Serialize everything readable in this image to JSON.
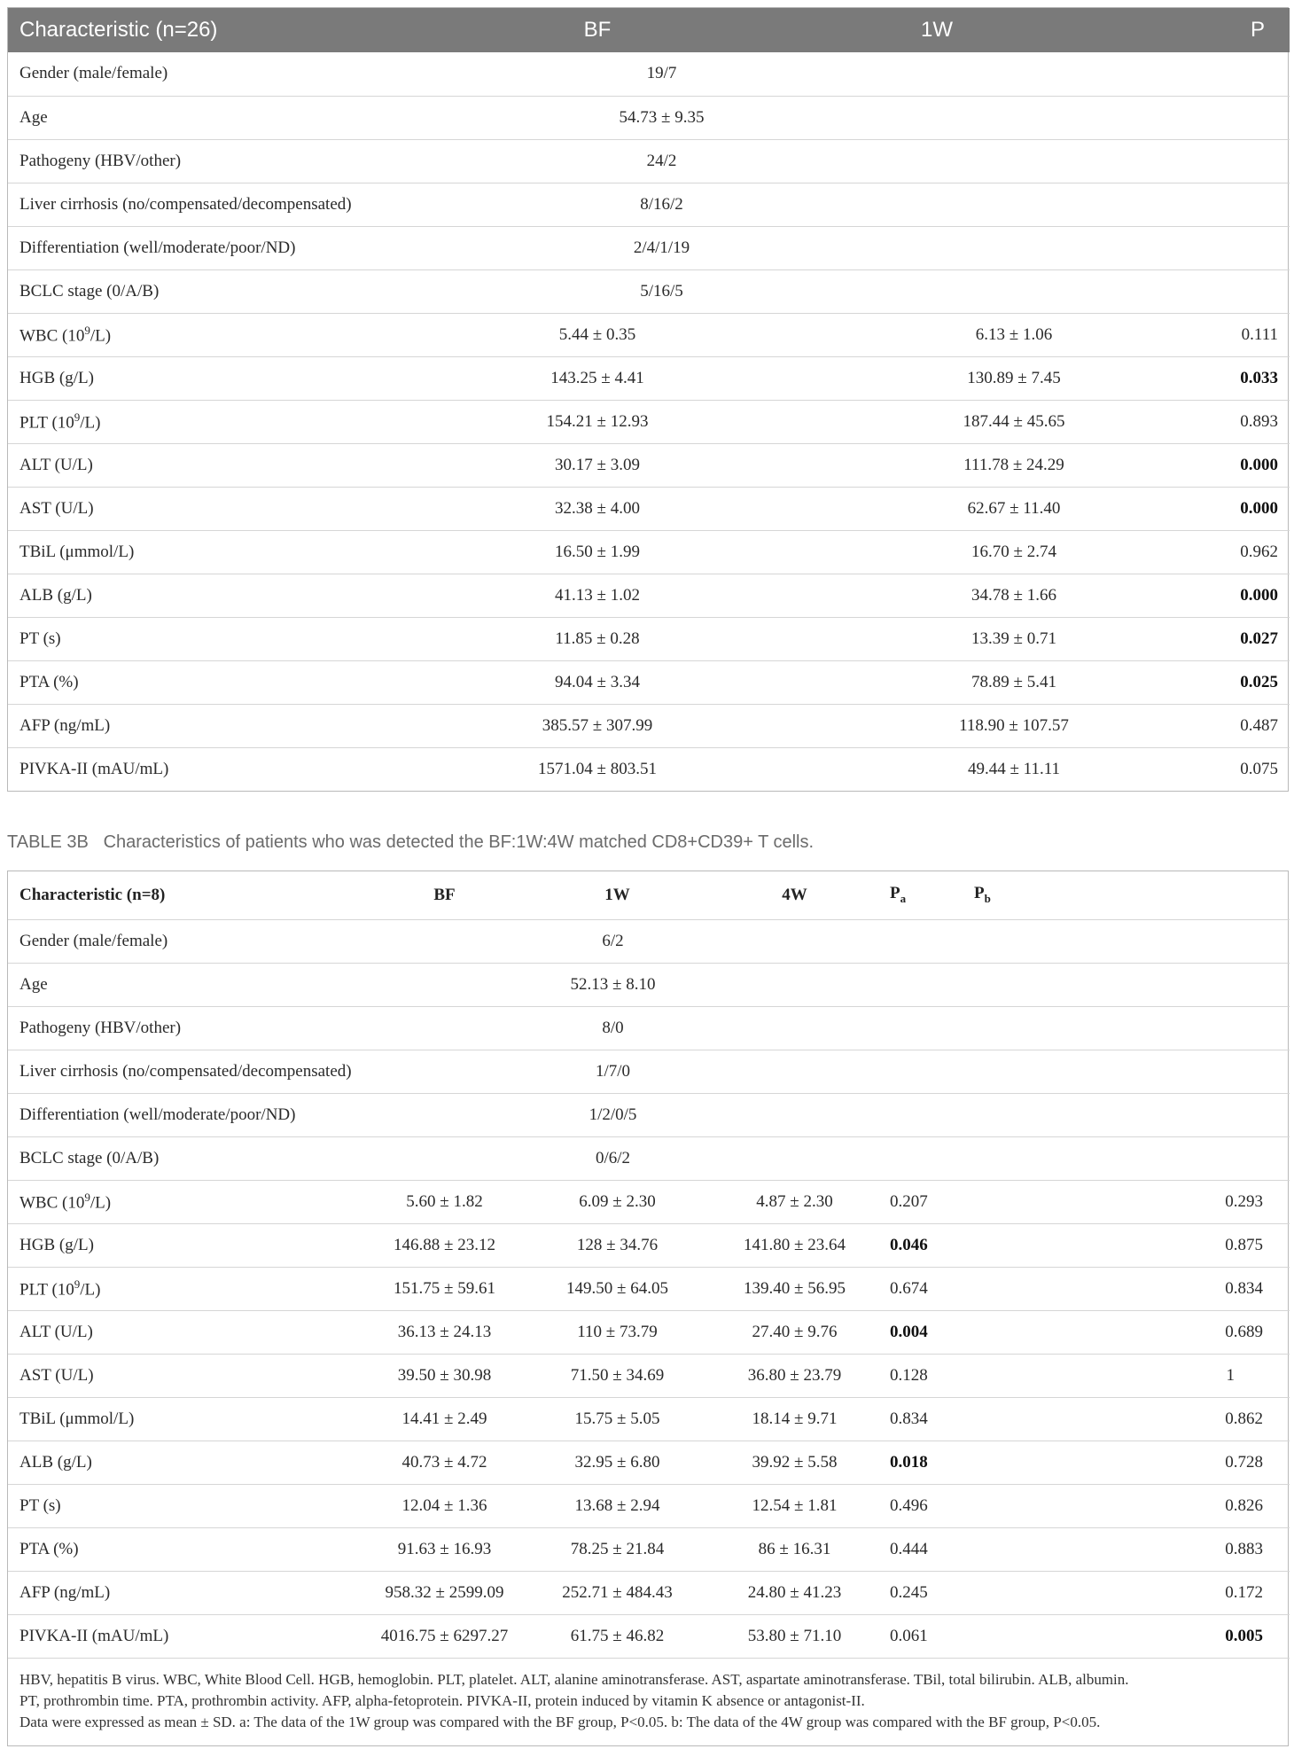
{
  "tableA": {
    "headers": {
      "characteristic": "Characteristic (n=26)",
      "bf": "BF",
      "w1": "1W",
      "p": "P"
    },
    "merged_rows": [
      {
        "label": "Gender (male/female)",
        "value": "19/7"
      },
      {
        "label": "Age",
        "value": "54.73 ± 9.35"
      },
      {
        "label": "Pathogeny (HBV/other)",
        "value": "24/2"
      },
      {
        "label": "Liver cirrhosis (no/compensated/decompensated)",
        "value": "8/16/2"
      },
      {
        "label": "Differentiation (well/moderate/poor/ND)",
        "value": "2/4/1/19"
      },
      {
        "label": "BCLC stage (0/A/B)",
        "value": "5/16/5"
      }
    ],
    "lab_rows": [
      {
        "label": "WBC (10",
        "sup": "9",
        "label_tail": "/L)",
        "bf": "5.44 ± 0.35",
        "w1": "6.13 ± 1.06",
        "p": "0.111",
        "p_bold": false
      },
      {
        "label": "HGB (g/L)",
        "bf": "143.25 ± 4.41",
        "w1": "130.89 ± 7.45",
        "p": "0.033",
        "p_bold": true
      },
      {
        "label": "PLT (10",
        "sup": "9",
        "label_tail": "/L)",
        "bf": "154.21 ± 12.93",
        "w1": "187.44 ± 45.65",
        "p": "0.893",
        "p_bold": false
      },
      {
        "label": "ALT (U/L)",
        "bf": "30.17 ± 3.09",
        "w1": "111.78 ± 24.29",
        "p": "0.000",
        "p_bold": true
      },
      {
        "label": "AST (U/L)",
        "bf": "32.38 ± 4.00",
        "w1": "62.67 ± 11.40",
        "p": "0.000",
        "p_bold": true
      },
      {
        "label": "TBiL (μmmol/L)",
        "bf": "16.50 ± 1.99",
        "w1": "16.70 ± 2.74",
        "p": "0.962",
        "p_bold": false
      },
      {
        "label": "ALB (g/L)",
        "bf": "41.13 ± 1.02",
        "w1": "34.78 ± 1.66",
        "p": "0.000",
        "p_bold": true
      },
      {
        "label": "PT (s)",
        "bf": "11.85 ± 0.28",
        "w1": "13.39 ± 0.71",
        "p": "0.027",
        "p_bold": true
      },
      {
        "label": "PTA (%)",
        "bf": "94.04 ± 3.34",
        "w1": "78.89 ± 5.41",
        "p": "0.025",
        "p_bold": true
      },
      {
        "label": "AFP (ng/mL)",
        "bf": "385.57 ± 307.99",
        "w1": "118.90 ± 107.57",
        "p": "0.487",
        "p_bold": false
      },
      {
        "label": "PIVKA-II (mAU/mL)",
        "bf": "1571.04 ± 803.51",
        "w1": "49.44 ± 11.11",
        "p": "0.075",
        "p_bold": false
      }
    ]
  },
  "caption": {
    "label": "TABLE 3B",
    "text": "Characteristics of patients who was detected the BF:1W:4W matched CD8+CD39+ T cells."
  },
  "tableB": {
    "headers": {
      "characteristic": "Characteristic (n=8)",
      "bf": "BF",
      "w1": "1W",
      "w4": "4W",
      "pa_base": "P",
      "pa_sub": "a",
      "pb_base": "P",
      "pb_sub": "b"
    },
    "merged_rows": [
      {
        "label": "Gender (male/female)",
        "value": "6/2"
      },
      {
        "label": "Age",
        "value": "52.13 ± 8.10"
      },
      {
        "label": "Pathogeny (HBV/other)",
        "value": "8/0"
      },
      {
        "label": "Liver cirrhosis (no/compensated/decompensated)",
        "value": "1/7/0"
      },
      {
        "label": "Differentiation (well/moderate/poor/ND)",
        "value": "1/2/0/5"
      },
      {
        "label": "BCLC stage (0/A/B)",
        "value": "0/6/2"
      }
    ],
    "lab_rows": [
      {
        "label": "WBC (10",
        "sup": "9",
        "label_tail": "/L)",
        "bf": "5.60 ± 1.82",
        "w1": "6.09 ± 2.30",
        "w4": "4.87 ± 2.30",
        "pa": "0.207",
        "pa_bold": false,
        "pb": "0.293",
        "pb_bold": false
      },
      {
        "label": "HGB (g/L)",
        "bf": "146.88 ± 23.12",
        "w1": "128 ± 34.76",
        "w4": "141.80 ± 23.64",
        "pa": "0.046",
        "pa_bold": true,
        "pb": "0.875",
        "pb_bold": false
      },
      {
        "label": "PLT (10",
        "sup": "9",
        "label_tail": "/L)",
        "bf": "151.75 ± 59.61",
        "w1": "149.50 ± 64.05",
        "w4": "139.40 ± 56.95",
        "pa": "0.674",
        "pa_bold": false,
        "pb": "0.834",
        "pb_bold": false
      },
      {
        "label": "ALT (U/L)",
        "bf": "36.13 ± 24.13",
        "w1": "110 ± 73.79",
        "w4": "27.40 ± 9.76",
        "pa": "0.004",
        "pa_bold": true,
        "pb": "0.689",
        "pb_bold": false
      },
      {
        "label": "AST (U/L)",
        "bf": "39.50 ± 30.98",
        "w1": "71.50 ± 34.69",
        "w4": "36.80 ± 23.79",
        "pa": "0.128",
        "pa_bold": false,
        "pb": "1",
        "pb_bold": false
      },
      {
        "label": "TBiL (μmmol/L)",
        "bf": "14.41 ± 2.49",
        "w1": "15.75 ± 5.05",
        "w4": "18.14 ± 9.71",
        "pa": "0.834",
        "pa_bold": false,
        "pb": "0.862",
        "pb_bold": false
      },
      {
        "label": "ALB (g/L)",
        "bf": "40.73 ± 4.72",
        "w1": "32.95 ± 6.80",
        "w4": "39.92 ± 5.58",
        "pa": "0.018",
        "pa_bold": true,
        "pb": "0.728",
        "pb_bold": false
      },
      {
        "label": "PT (s)",
        "bf": "12.04 ± 1.36",
        "w1": "13.68 ± 2.94",
        "w4": "12.54 ± 1.81",
        "pa": "0.496",
        "pa_bold": false,
        "pb": "0.826",
        "pb_bold": false
      },
      {
        "label": "PTA (%)",
        "bf": "91.63 ± 16.93",
        "w1": "78.25 ± 21.84",
        "w4": "86 ± 16.31",
        "pa": "0.444",
        "pa_bold": false,
        "pb": "0.883",
        "pb_bold": false
      },
      {
        "label": "AFP (ng/mL)",
        "bf": "958.32 ± 2599.09",
        "w1": "252.71 ± 484.43",
        "w4": "24.80 ± 41.23",
        "pa": "0.245",
        "pa_bold": false,
        "pb": "0.172",
        "pb_bold": false
      },
      {
        "label": "PIVKA-II (mAU/mL)",
        "bf": "4016.75 ± 6297.27",
        "w1": "61.75 ± 46.82",
        "w4": "53.80 ± 71.10",
        "pa": "0.061",
        "pa_bold": false,
        "pb": "0.005",
        "pb_bold": true
      }
    ],
    "footnote_lines": [
      "HBV, hepatitis B virus. WBC, White Blood Cell. HGB, hemoglobin. PLT, platelet. ALT, alanine aminotransferase. AST, aspartate aminotransferase. TBil, total bilirubin. ALB, albumin.",
      "PT, prothrombin time. PTA, prothrombin activity. AFP, alpha-fetoprotein. PIVKA-II, protein induced by vitamin K absence or antagonist-II.",
      "Data were expressed as mean ± SD. a: The data of the 1W group was compared with the BF group, P<0.05. b: The data of the 4W group was compared with the BF group, P<0.05."
    ]
  }
}
